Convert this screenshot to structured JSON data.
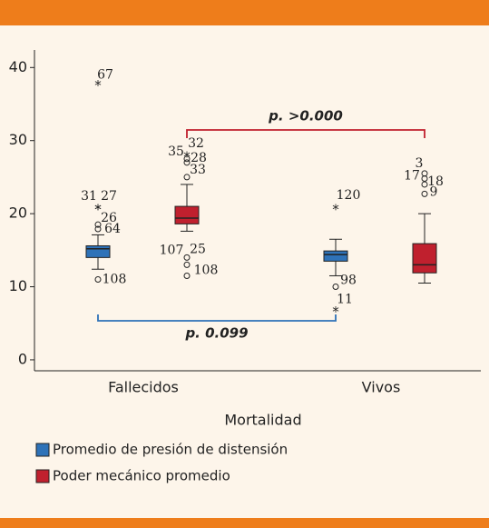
{
  "chart_data": {
    "type": "box",
    "x_label": "Mortalidad",
    "categories": [
      "Fallecidos",
      "Vivos"
    ],
    "ylim": [
      -1.5,
      42.4
    ],
    "yticks": [
      0,
      10,
      20,
      30,
      40
    ],
    "series": [
      {
        "name": "Promedio de presión de distensión",
        "color": "#2e72b8",
        "boxes": [
          {
            "min": 12.4,
            "q1": 14.0,
            "median": 15.2,
            "q3": 15.6,
            "max": 17.1
          },
          {
            "min": 11.5,
            "q1": 13.5,
            "median": 14.4,
            "q3": 14.9,
            "max": 16.5
          }
        ],
        "outliers": [
          [
            {
              "value": 38,
              "label": "67",
              "marker": "star"
            },
            {
              "value": 21,
              "label": "31",
              "marker": "star"
            },
            {
              "value": 21,
              "label": "27",
              "marker": "star"
            },
            {
              "value": 18.5,
              "label": "26",
              "marker": "circle"
            },
            {
              "value": 17.9,
              "label": "64",
              "marker": "circle"
            },
            {
              "value": 11,
              "label": "108",
              "marker": "circle"
            }
          ],
          [
            {
              "value": 21,
              "label": "120",
              "marker": "star"
            },
            {
              "value": 10,
              "label": "98",
              "marker": "circle"
            },
            {
              "value": 7,
              "label": "11",
              "marker": "star"
            }
          ]
        ]
      },
      {
        "name": "Poder mecánico promedio",
        "color": "#c0202e",
        "boxes": [
          {
            "min": 17.6,
            "q1": 18.6,
            "median": 19.4,
            "q3": 21.0,
            "max": 24.0
          },
          {
            "min": 10.5,
            "q1": 11.9,
            "median": 13.0,
            "q3": 15.9,
            "max": 20.0
          }
        ],
        "outliers": [
          [
            {
              "value": 28.2,
              "label": "35",
              "marker": "star"
            },
            {
              "value": 27.5,
              "label": "32",
              "marker": "circle"
            },
            {
              "value": 27.0,
              "label": "28",
              "marker": "circle"
            },
            {
              "value": 25,
              "label": "33",
              "marker": "circle"
            },
            {
              "value": 14,
              "label": "107",
              "marker": "circle"
            },
            {
              "value": 13,
              "label": "25",
              "marker": "circle"
            },
            {
              "value": 11.5,
              "label": "108",
              "marker": "circle"
            }
          ],
          [
            {
              "value": 25.5,
              "label": "3",
              "marker": "circle"
            },
            {
              "value": 24.8,
              "label": "17",
              "marker": "circle"
            },
            {
              "value": 24,
              "label": "18",
              "marker": "circle"
            },
            {
              "value": 22.7,
              "label": "9",
              "marker": "circle"
            }
          ]
        ]
      }
    ],
    "annotations": [
      "p. >0.000",
      "p. 0.099"
    ]
  }
}
